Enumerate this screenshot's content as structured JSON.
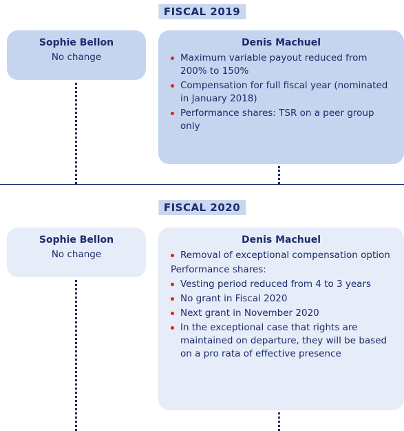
{
  "sections": [
    {
      "year": "FISCAL 2019",
      "left": {
        "name": "Sophie Bellon",
        "text": "No change"
      },
      "right": {
        "name": "Denis Machuel",
        "items": [
          {
            "text": "Maximum variable payout reduced from 200% to 150%",
            "bullet": true
          },
          {
            "text": "Compensation for full fiscal year (nominated in January 2018)",
            "bullet": true
          },
          {
            "text": "Performance shares: TSR on a peer group only",
            "bullet": true
          }
        ]
      }
    },
    {
      "year": "FISCAL 2020",
      "left": {
        "name": "Sophie Bellon",
        "text": "No change"
      },
      "right": {
        "name": "Denis Machuel",
        "items": [
          {
            "text": "Removal of exceptional compensation option",
            "bullet": true
          },
          {
            "text": "Performance shares:",
            "bullet": false
          },
          {
            "text": "Vesting period reduced from 4 to 3 years",
            "bullet": true
          },
          {
            "text": "No grant in Fiscal 2020",
            "bullet": true
          },
          {
            "text": "Next grant in November 2020",
            "bullet": true
          },
          {
            "text": "In the exceptional case that rights are maintained on departure, they will be based on a pro rata of effective presence",
            "bullet": true
          }
        ]
      }
    }
  ]
}
